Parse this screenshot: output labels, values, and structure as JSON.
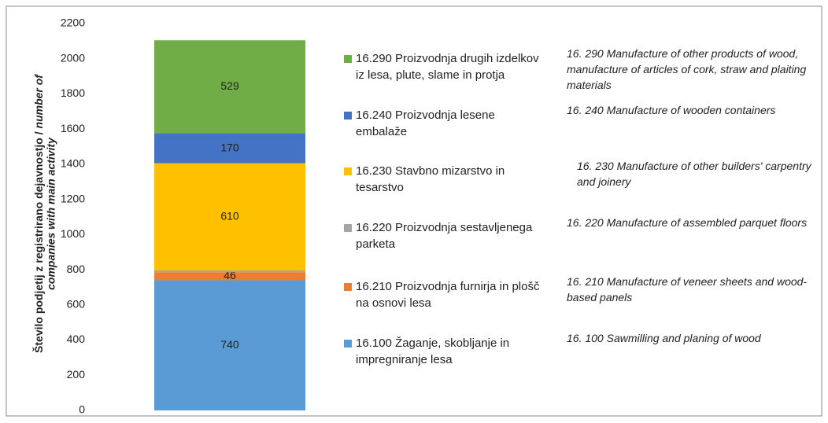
{
  "chart_data": {
    "type": "bar",
    "stacked": true,
    "ylabel": [
      "Število podjetij z registrirano dejavnostjo / ",
      "number of",
      "companies with main activity"
    ],
    "categories": [
      null
    ],
    "series": [
      {
        "name": "16.100 Žaganje, skobljanje in impregniranje lesa",
        "description": "16. 100 Sawmilling and planing of wood",
        "color": "#5b9bd5",
        "values": [
          740
        ],
        "value_labels": [
          "740"
        ]
      },
      {
        "name": "16.210 Proizvodnja furnirja in plošč na osnovi lesa",
        "description": "16. 210 Manufacture of veneer sheets and wood-based panels",
        "color": "#ed7d31",
        "values": [
          46
        ],
        "value_labels": [
          "46"
        ]
      },
      {
        "name": "16.220 Proizvodnja sestavljenega parketa",
        "description": "16. 220 Manufacture of assembled parquet floors",
        "color": "#a5a5a5",
        "values": [
          10
        ],
        "value_labels": [
          null
        ]
      },
      {
        "name": "16.230 Stavbno mizarstvo in tesarstvo",
        "description": "16. 230 Manufacture of other builders' carpentry and joinery",
        "color": "#ffc000",
        "values": [
          610
        ],
        "value_labels": [
          "610"
        ]
      },
      {
        "name": "16.240 Proizvodnja lesene embalaže",
        "description": "16. 240 Manufacture of wooden containers",
        "color": "#4472c4",
        "values": [
          170
        ],
        "value_labels": [
          "170"
        ]
      },
      {
        "name": "16.290 Proizvodnja drugih izdelkov iz lesa, plute, slame in protja",
        "description": "16. 290 Manufacture of other products of wood, manufacture of articles of cork, straw and plaiting materials",
        "color": "#70ad47",
        "values": [
          529
        ],
        "value_labels": [
          "529"
        ]
      }
    ],
    "ylim": [
      0,
      2200
    ],
    "yticks": [
      0,
      200,
      400,
      600,
      800,
      1000,
      1200,
      1400,
      1600,
      1800,
      2000,
      2200
    ],
    "grid": false
  }
}
